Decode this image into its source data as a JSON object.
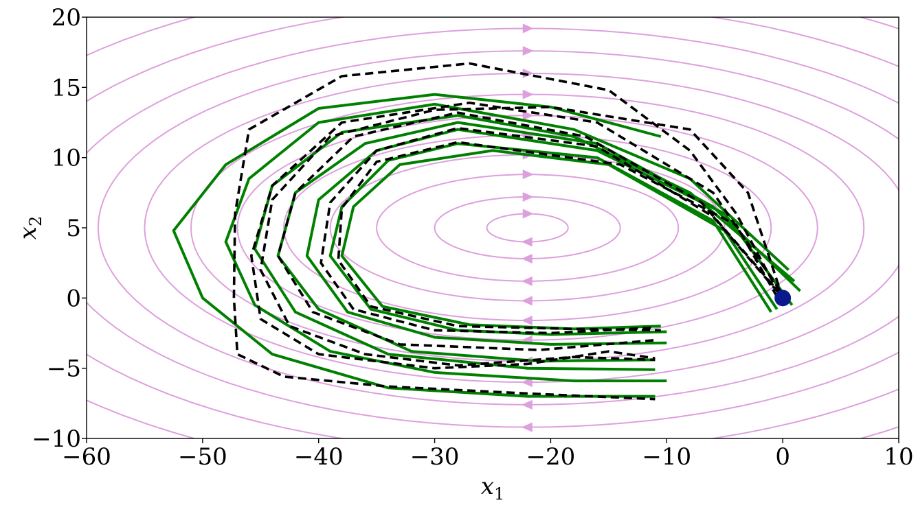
{
  "chart_data": {
    "type": "line",
    "title": "",
    "xlabel": "x",
    "xlabel_sub": "1",
    "ylabel": "x",
    "ylabel_sub": "2",
    "xlim": [
      -60,
      10
    ],
    "ylim": [
      -10,
      20
    ],
    "x_ticks": [
      -60,
      -50,
      -40,
      -30,
      -20,
      -10,
      0,
      10
    ],
    "x_tick_labels": [
      "−60",
      "−50",
      "−40",
      "−30",
      "−20",
      "−10",
      "0",
      "10"
    ],
    "y_ticks": [
      -10,
      -5,
      0,
      5,
      10,
      15,
      20
    ],
    "y_tick_labels": [
      "−10",
      "−5",
      "0",
      "5",
      "10",
      "15",
      "20"
    ],
    "grid": false,
    "colors": {
      "streamline": "#dda0dd",
      "trajectory": "#008000",
      "reference": "#000000",
      "target": "#0a1a8c"
    },
    "streamlines": {
      "center": [
        -22,
        5
      ],
      "radii": [
        [
          3.5,
          1
        ],
        [
          8,
          2.2
        ],
        [
          13,
          3.8
        ],
        [
          17,
          5.2
        ],
        [
          21,
          6.6
        ],
        [
          25,
          8
        ],
        [
          29,
          9.5
        ],
        [
          33,
          11
        ],
        [
          37,
          12.6
        ],
        [
          41,
          14.2
        ],
        [
          46,
          16
        ],
        [
          52,
          18
        ]
      ]
    },
    "target": [
      0,
      0
    ],
    "series": [
      {
        "style": "solid",
        "points": [
          [
            -10.5,
            11.5
          ],
          [
            -20,
            13.6
          ],
          [
            -30,
            14.5
          ],
          [
            -40,
            13.5
          ],
          [
            -48,
            9.5
          ],
          [
            -52.5,
            4.8
          ],
          [
            -50,
            0
          ],
          [
            -44,
            -4
          ],
          [
            -34,
            -6.4
          ],
          [
            -22,
            -7
          ],
          [
            -11,
            -7
          ]
        ]
      },
      {
        "style": "solid",
        "points": [
          [
            0.5,
            2
          ],
          [
            -8,
            8.5
          ],
          [
            -18,
            12
          ],
          [
            -30,
            13.8
          ],
          [
            -40,
            12.5
          ],
          [
            -46,
            8.5
          ],
          [
            -48,
            4
          ],
          [
            -45.5,
            -0.5
          ],
          [
            -39,
            -3.8
          ],
          [
            -30,
            -5.3
          ],
          [
            -18,
            -5.9
          ],
          [
            -10,
            -5.9
          ]
        ]
      },
      {
        "style": "solid",
        "points": [
          [
            1,
            1.2
          ],
          [
            -8,
            7.5
          ],
          [
            -18,
            11.5
          ],
          [
            -28,
            13
          ],
          [
            -38,
            11.8
          ],
          [
            -44,
            8
          ],
          [
            -45.5,
            3.5
          ],
          [
            -42,
            -1
          ],
          [
            -34,
            -4
          ],
          [
            -22,
            -5
          ],
          [
            -11,
            -5.1
          ]
        ]
      },
      {
        "style": "solid",
        "points": [
          [
            1.5,
            0.5
          ],
          [
            -6,
            6.5
          ],
          [
            -16,
            11
          ],
          [
            -28,
            12.5
          ],
          [
            -36,
            11
          ],
          [
            -42,
            7.5
          ],
          [
            -43.5,
            3
          ],
          [
            -40,
            -0.8
          ],
          [
            -32,
            -3.8
          ],
          [
            -21,
            -4.5
          ],
          [
            -11,
            -4.4
          ]
        ]
      },
      {
        "style": "solid",
        "points": [
          [
            0.8,
            -0.5
          ],
          [
            -5,
            6
          ],
          [
            -16,
            10.5
          ],
          [
            -28,
            12
          ],
          [
            -35,
            10.5
          ],
          [
            -40,
            7
          ],
          [
            -41,
            3
          ],
          [
            -37.5,
            -1
          ],
          [
            -30,
            -2.8
          ],
          [
            -20,
            -3.3
          ],
          [
            -10,
            -3.2
          ]
        ]
      },
      {
        "style": "solid",
        "points": [
          [
            -1,
            -1
          ],
          [
            -6,
            5.5
          ],
          [
            -16,
            10
          ],
          [
            -28,
            11
          ],
          [
            -34,
            9.8
          ],
          [
            -38,
            6.5
          ],
          [
            -39,
            3
          ],
          [
            -35.5,
            -0.8
          ],
          [
            -28,
            -2.3
          ],
          [
            -20,
            -2.6
          ],
          [
            -10,
            -2.4
          ]
        ]
      },
      {
        "style": "solid",
        "points": [
          [
            -0.5,
            -0.8
          ],
          [
            -5,
            4.8
          ],
          [
            -15,
            9.5
          ],
          [
            -25,
            10.5
          ],
          [
            -33,
            9.5
          ],
          [
            -37,
            6.5
          ],
          [
            -38,
            3
          ],
          [
            -34.5,
            -0.6
          ],
          [
            -27,
            -1.9
          ],
          [
            -18,
            -2.2
          ],
          [
            -10.5,
            -2
          ]
        ]
      },
      {
        "style": "dashed",
        "points": [
          [
            -0.3,
            0.3
          ],
          [
            -4,
            6
          ],
          [
            -8,
            10.5
          ],
          [
            -15,
            14.8
          ],
          [
            -27,
            16.7
          ],
          [
            -38,
            15.8
          ],
          [
            -46,
            12
          ],
          [
            -47.2,
            6
          ],
          [
            -47.3,
            0
          ],
          [
            -47,
            -4
          ],
          [
            -43,
            -5.6
          ],
          [
            -34,
            -6.3
          ],
          [
            -22,
            -6.8
          ],
          [
            -11,
            -7.2
          ]
        ]
      },
      {
        "style": "dashed",
        "points": [
          [
            -0.2,
            0.5
          ],
          [
            -6,
            7.5
          ],
          [
            -16,
            12.5
          ],
          [
            -27,
            13.9
          ],
          [
            -38,
            12.5
          ],
          [
            -44,
            8
          ],
          [
            -45.8,
            3
          ],
          [
            -45,
            -1.5
          ],
          [
            -40,
            -4
          ],
          [
            -30,
            -5
          ],
          [
            -22,
            -4.7
          ],
          [
            -15,
            -3.8
          ],
          [
            -11,
            -4.3
          ]
        ]
      },
      {
        "style": "dashed",
        "points": [
          [
            -0.1,
            0.2
          ],
          [
            -7,
            6.8
          ],
          [
            -17,
            11.5
          ],
          [
            -28,
            13.2
          ],
          [
            -37,
            11.5
          ],
          [
            -42,
            7.5
          ],
          [
            -43.5,
            3
          ],
          [
            -40.5,
            -1
          ],
          [
            -33,
            -3.3
          ],
          [
            -21,
            -3.7
          ],
          [
            -11,
            -3
          ]
        ]
      },
      {
        "style": "dashed",
        "points": [
          [
            -0.4,
            0.4
          ],
          [
            -6,
            5.8
          ],
          [
            -16,
            10.8
          ],
          [
            -28,
            12.1
          ],
          [
            -35,
            10.5
          ],
          [
            -39,
            6.8
          ],
          [
            -39.8,
            2.5
          ],
          [
            -37,
            -0.8
          ],
          [
            -30,
            -2.3
          ],
          [
            -20,
            -2.5
          ],
          [
            -11,
            -2.1
          ]
        ]
      },
      {
        "style": "dashed",
        "points": [
          [
            -0.5,
            0.1
          ],
          [
            -4,
            5.2
          ],
          [
            -14,
            9.5
          ],
          [
            -28,
            11.1
          ],
          [
            -35,
            9.7
          ],
          [
            -38,
            6.4
          ],
          [
            -38.3,
            2.7
          ],
          [
            -35.5,
            -0.6
          ],
          [
            -28,
            -2
          ],
          [
            -18,
            -2.2
          ],
          [
            -10.5,
            -2.3
          ]
        ]
      },
      {
        "style": "dashed",
        "points": [
          [
            0,
            0
          ],
          [
            -3,
            7.5
          ],
          [
            -8,
            12
          ],
          [
            -20,
            13.6
          ],
          [
            -30,
            13.4
          ],
          [
            -39,
            11.5
          ],
          [
            -44,
            7
          ],
          [
            -45,
            2
          ],
          [
            -42.5,
            -2
          ],
          [
            -36,
            -4
          ],
          [
            -28,
            -4.8
          ],
          [
            -18,
            -4.2
          ],
          [
            -11,
            -4.4
          ]
        ]
      }
    ]
  }
}
